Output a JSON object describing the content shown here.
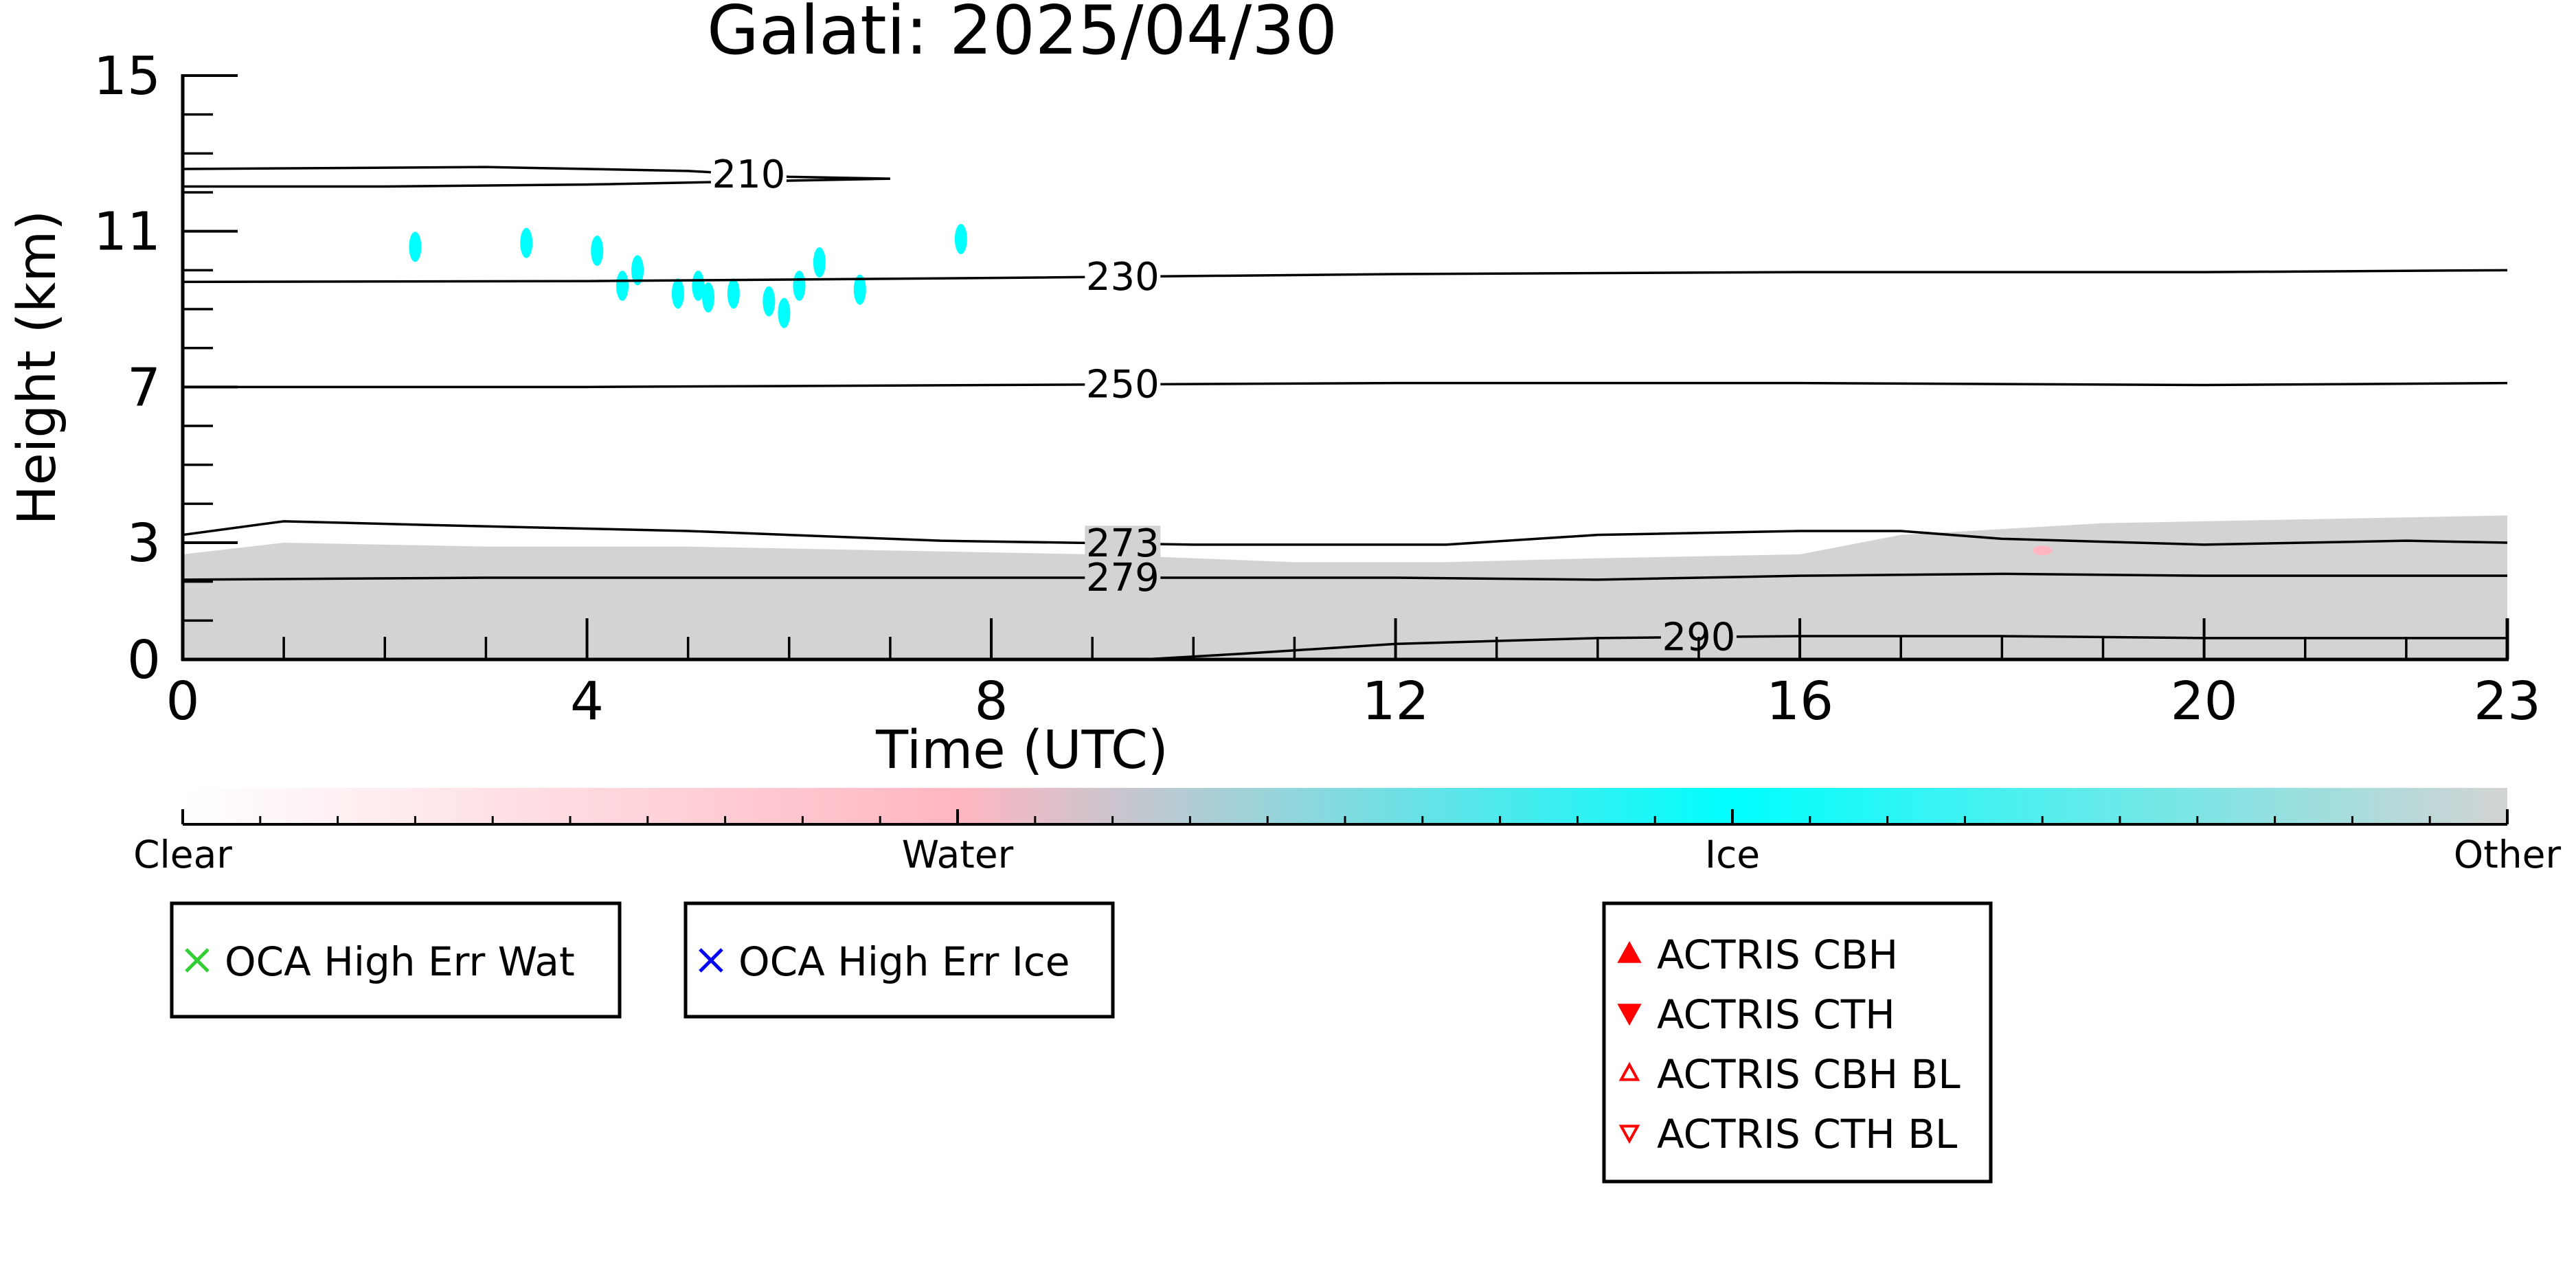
{
  "chart_data": {
    "type": "heatmap",
    "title": "Galati: 2025/04/30",
    "xlabel": "Time (UTC)",
    "ylabel": "Height (km)",
    "xlim": [
      0,
      23
    ],
    "ylim": [
      0,
      15
    ],
    "x_ticks": [
      "0",
      "4",
      "8",
      "12",
      "16",
      "20",
      "23"
    ],
    "y_ticks": [
      "0",
      "3",
      "7",
      "11",
      "15"
    ],
    "colorbar": {
      "labels": [
        "Clear",
        "Water",
        "Ice",
        "Other"
      ],
      "colors": [
        "#ffffff",
        "#ffb6c1",
        "#00ffff",
        "#d3d3d3"
      ]
    },
    "legends": [
      {
        "items": [
          {
            "label": "OCA High Err Wat",
            "marker": "x-icon",
            "color": "#32cd32"
          }
        ]
      },
      {
        "items": [
          {
            "label": "OCA High Err Ice",
            "marker": "x-icon",
            "color": "#0000ff"
          }
        ]
      },
      {
        "items": [
          {
            "label": "ACTRIS CBH",
            "marker": "triangle-up-filled-icon",
            "color": "#ff0000"
          },
          {
            "label": "ACTRIS CTH",
            "marker": "triangle-down-filled-icon",
            "color": "#ff0000"
          },
          {
            "label": "ACTRIS CBH BL",
            "marker": "triangle-up-open-icon",
            "color": "#ff0000"
          },
          {
            "label": "ACTRIS CTH BL",
            "marker": "triangle-down-open-icon",
            "color": "#ff0000"
          }
        ]
      }
    ],
    "other_region": {
      "class": "Other",
      "color": "#d3d3d3",
      "top_km": [
        [
          0,
          2.7
        ],
        [
          1,
          3.0
        ],
        [
          3,
          2.9
        ],
        [
          5,
          2.9
        ],
        [
          7,
          2.8
        ],
        [
          9,
          2.7
        ],
        [
          11,
          2.5
        ],
        [
          12.5,
          2.5
        ],
        [
          14,
          2.6
        ],
        [
          16,
          2.7
        ],
        [
          17,
          3.2
        ],
        [
          19,
          3.5
        ],
        [
          21,
          3.6
        ],
        [
          23,
          3.7
        ]
      ]
    },
    "ice_clouds": {
      "class": "Ice",
      "color": "#00ffff",
      "points": [
        [
          2.3,
          10.6
        ],
        [
          3.4,
          10.7
        ],
        [
          4.1,
          10.5
        ],
        [
          4.35,
          9.6
        ],
        [
          4.5,
          10.0
        ],
        [
          4.9,
          9.4
        ],
        [
          5.1,
          9.6
        ],
        [
          5.2,
          9.3
        ],
        [
          5.45,
          9.4
        ],
        [
          5.8,
          9.2
        ],
        [
          5.95,
          8.9
        ],
        [
          6.1,
          9.6
        ],
        [
          6.3,
          10.2
        ],
        [
          6.7,
          9.5
        ],
        [
          7.7,
          10.8
        ]
      ]
    },
    "water_clouds": {
      "class": "Water",
      "color": "#ffb6c1",
      "points": [
        [
          18.4,
          2.8
        ]
      ]
    },
    "temperature_contours": [
      {
        "label": "210",
        "label_x": 5.6,
        "points": [
          [
            0,
            12.6
          ],
          [
            3,
            12.65
          ],
          [
            5,
            12.55
          ],
          [
            6,
            12.4
          ],
          [
            7,
            12.35
          ],
          [
            6,
            12.3
          ],
          [
            4,
            12.2
          ],
          [
            2,
            12.15
          ],
          [
            0,
            12.15
          ]
        ]
      },
      {
        "label": "230",
        "label_x": 9.3,
        "points": [
          [
            0,
            9.7
          ],
          [
            4,
            9.72
          ],
          [
            8,
            9.8
          ],
          [
            12,
            9.9
          ],
          [
            16,
            9.95
          ],
          [
            20,
            9.95
          ],
          [
            23,
            10.0
          ]
        ]
      },
      {
        "label": "250",
        "label_x": 9.3,
        "points": [
          [
            0,
            7.0
          ],
          [
            4,
            7.0
          ],
          [
            8,
            7.05
          ],
          [
            12,
            7.1
          ],
          [
            16,
            7.1
          ],
          [
            20,
            7.05
          ],
          [
            23,
            7.1
          ]
        ]
      },
      {
        "label": "273",
        "label_x": 9.3,
        "points": [
          [
            0,
            3.2
          ],
          [
            1,
            3.55
          ],
          [
            2.5,
            3.45
          ],
          [
            5,
            3.3
          ],
          [
            7.5,
            3.05
          ],
          [
            10,
            2.95
          ],
          [
            12.5,
            2.95
          ],
          [
            14,
            3.2
          ],
          [
            16,
            3.3
          ],
          [
            17,
            3.3
          ],
          [
            18,
            3.1
          ],
          [
            20,
            2.95
          ],
          [
            22,
            3.05
          ],
          [
            23,
            3.0
          ]
        ]
      },
      {
        "label": "279",
        "label_x": 9.3,
        "points": [
          [
            0,
            2.05
          ],
          [
            3,
            2.1
          ],
          [
            6,
            2.1
          ],
          [
            9,
            2.1
          ],
          [
            12,
            2.1
          ],
          [
            14,
            2.05
          ],
          [
            16,
            2.15
          ],
          [
            18,
            2.2
          ],
          [
            20,
            2.15
          ],
          [
            23,
            2.15
          ]
        ]
      },
      {
        "label": "290",
        "label_x": 15.0,
        "points": [
          [
            9.5,
            0.0
          ],
          [
            10.5,
            0.15
          ],
          [
            12,
            0.4
          ],
          [
            14,
            0.55
          ],
          [
            16,
            0.6
          ],
          [
            18,
            0.6
          ],
          [
            20,
            0.55
          ],
          [
            23,
            0.55
          ]
        ]
      }
    ]
  }
}
